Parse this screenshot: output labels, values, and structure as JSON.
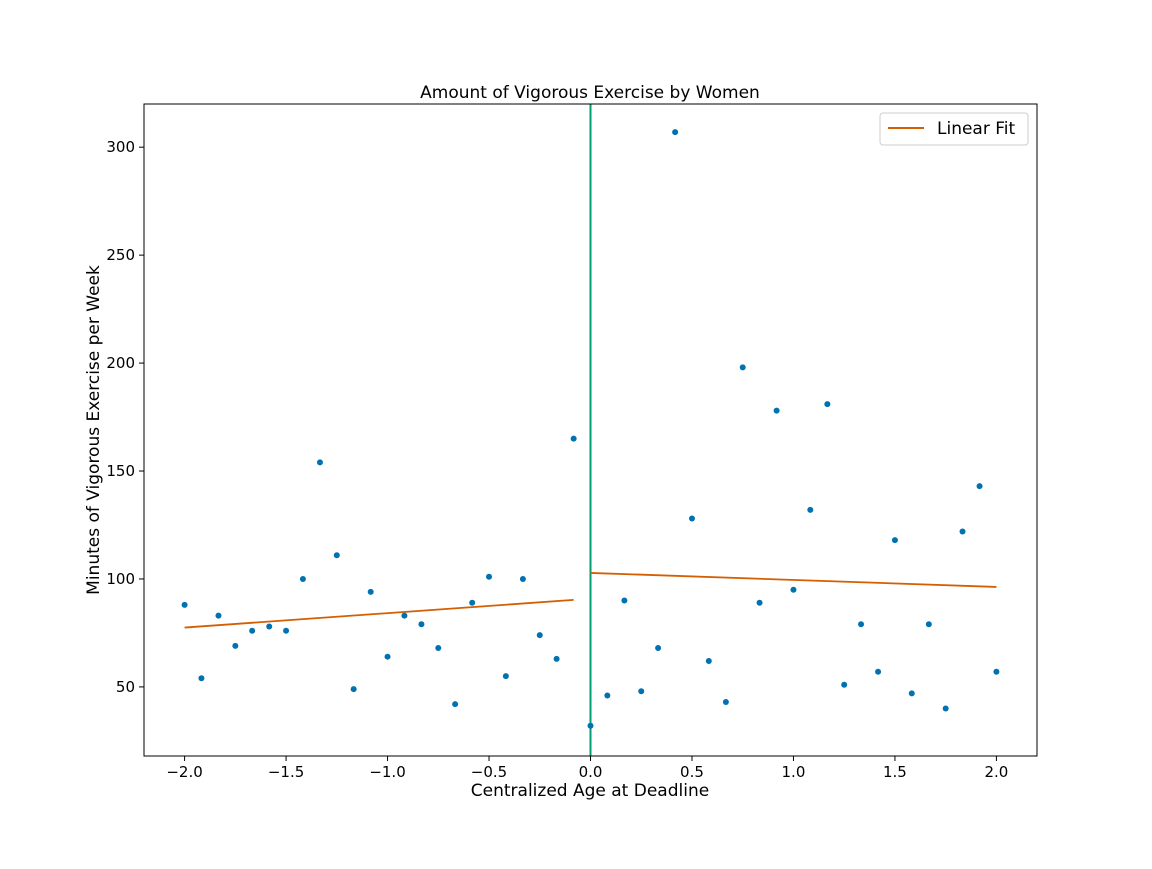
{
  "chart_data": {
    "type": "scatter",
    "title": "Amount of Vigorous Exercise by Women",
    "xlabel": "Centralized Age at Deadline",
    "ylabel": "Minutes of Vigorous Exercise per Week",
    "xlim": [
      -2.2,
      2.2
    ],
    "ylim": [
      18,
      320
    ],
    "xticks": [
      -2.0,
      -1.5,
      -1.0,
      -0.5,
      0.0,
      0.5,
      1.0,
      1.5,
      2.0
    ],
    "xtick_labels": [
      "−2.0",
      "−1.5",
      "−1.0",
      "−0.5",
      "0.0",
      "0.5",
      "1.0",
      "1.5",
      "2.0"
    ],
    "yticks": [
      50,
      100,
      150,
      200,
      250,
      300
    ],
    "ytick_labels": [
      "50",
      "100",
      "150",
      "200",
      "250",
      "300"
    ],
    "grid": false,
    "legend": {
      "placement": "top-right",
      "entries": [
        "Linear Fit"
      ]
    },
    "cutoff_x": 0.0,
    "colors": {
      "points": "#0072b2",
      "fit": "#d55e00",
      "cutoff": "#009e73"
    },
    "points": {
      "x": [
        -2.0,
        -1.917,
        -1.833,
        -1.75,
        -1.667,
        -1.583,
        -1.5,
        -1.417,
        -1.333,
        -1.25,
        -1.167,
        -1.083,
        -1.0,
        -0.917,
        -0.833,
        -0.75,
        -0.667,
        -0.583,
        -0.5,
        -0.417,
        -0.333,
        -0.25,
        -0.167,
        -0.083,
        0.0,
        0.083,
        0.167,
        0.25,
        0.333,
        0.417,
        0.5,
        0.583,
        0.667,
        0.75,
        0.833,
        0.917,
        1.0,
        1.083,
        1.167,
        1.25,
        1.333,
        1.417,
        1.5,
        1.583,
        1.667,
        1.75,
        1.833,
        1.917,
        2.0
      ],
      "y": [
        88,
        54,
        83,
        69,
        76,
        78,
        76,
        100,
        154,
        111,
        49,
        94,
        64,
        83,
        79,
        68,
        42,
        89,
        101,
        55,
        100,
        74,
        63,
        165,
        32,
        46,
        90,
        48,
        68,
        307,
        128,
        62,
        43,
        198,
        89,
        178,
        95,
        132,
        181,
        51,
        79,
        57,
        118,
        47,
        79,
        40,
        122,
        143,
        57
      ]
    },
    "fit": {
      "name": "Linear Fit",
      "segments": [
        {
          "x": [
            -2.0,
            -0.083
          ],
          "y": [
            77.5,
            90.3
          ]
        },
        {
          "x": [
            0.0,
            2.0
          ],
          "y": [
            102.8,
            96.3
          ]
        }
      ]
    }
  }
}
